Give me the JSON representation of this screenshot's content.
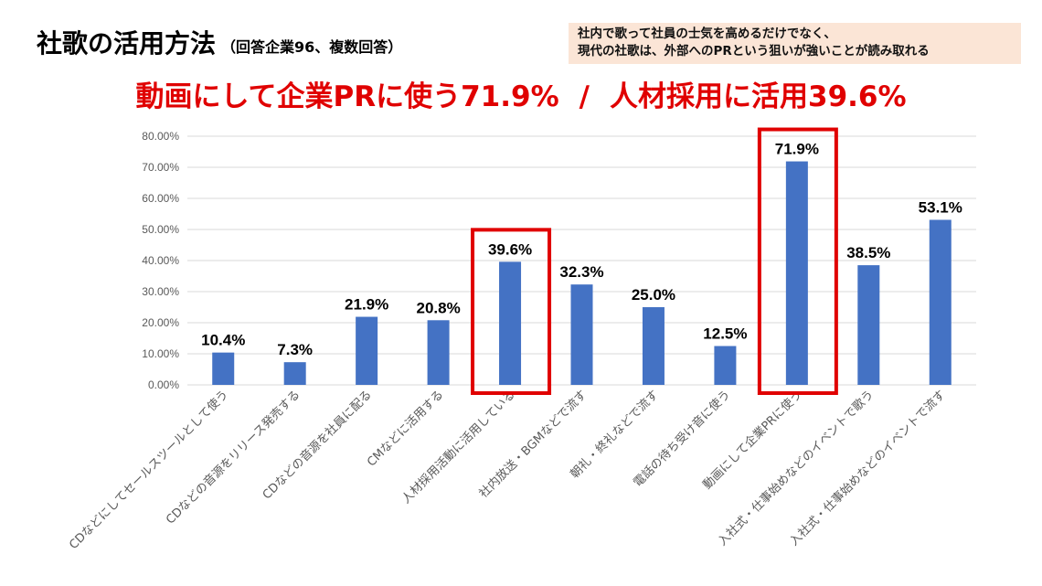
{
  "header": {
    "title": "社歌の活用方法",
    "subtitle": "（回答企業96、複数回答）",
    "note_lines": [
      "社内で歌って社員の士気を高めるだけでなく、",
      "現代の社歌は、外部へのPRという狙いが強いことが読み取れる"
    ],
    "headline_left": "動画にして企業PRに使う71.9%",
    "headline_sep": "/",
    "headline_right": "人材採用に活用39.6%"
  },
  "colors": {
    "bar": "#4472c4",
    "highlight": "#e00000",
    "note_bg": "#fbe5d6"
  },
  "chart_data": {
    "type": "bar",
    "categories": [
      "CDなどにしてセールスツールとして使う",
      "CDなどの音源をリリース発売する",
      "CDなどの音源を社員に配る",
      "CMなどに活用する",
      "人材採用活動に活用している",
      "社内放送・BGMなどで流す",
      "朝礼・終礼などで流す",
      "電話の待ち受け音に使う",
      "動画にして企業PRに使う",
      "入社式・仕事始めなどのイベントで歌う",
      "入社式・仕事始めなどのイベントで流す"
    ],
    "values": [
      10.4,
      7.3,
      21.9,
      20.8,
      39.6,
      32.3,
      25.0,
      12.5,
      71.9,
      38.5,
      53.1
    ],
    "data_labels": [
      "10.4%",
      "7.3%",
      "21.9%",
      "20.8%",
      "39.6%",
      "32.3%",
      "25.0%",
      "12.5%",
      "71.9%",
      "38.5%",
      "53.1%"
    ],
    "highlighted": [
      "人材採用活動に活用している",
      "動画にして企業PRに使う"
    ],
    "ylim": [
      0,
      80
    ],
    "yticks": [
      "0.00%",
      "10.00%",
      "20.00%",
      "30.00%",
      "40.00%",
      "50.00%",
      "60.00%",
      "70.00%",
      "80.00%"
    ],
    "grid": true,
    "xlabel": "",
    "ylabel": ""
  }
}
